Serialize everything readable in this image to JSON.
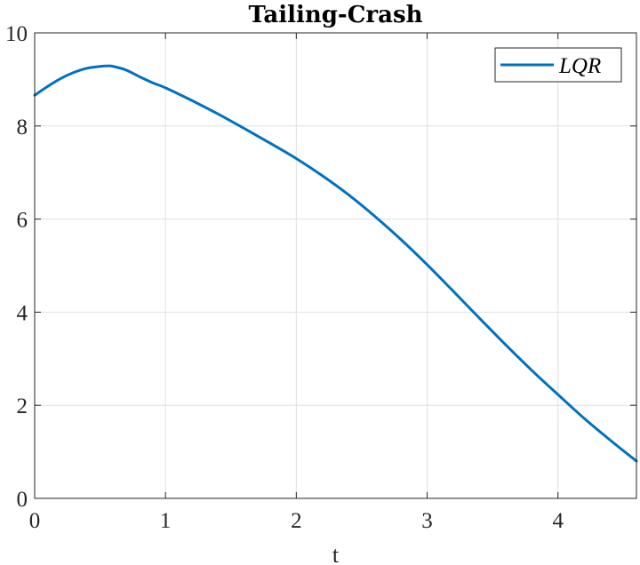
{
  "chart_data": {
    "type": "line",
    "title": "Tailing-Crash",
    "xlabel": "t",
    "ylabel": "",
    "xlim": [
      0,
      4.6
    ],
    "ylim": [
      0,
      10
    ],
    "xticks": [
      0,
      1,
      2,
      3,
      4
    ],
    "yticks": [
      0,
      2,
      4,
      6,
      8,
      10
    ],
    "grid": true,
    "legend_position": "top-right",
    "series": [
      {
        "name": "LQR",
        "color": "#0072BD",
        "x": [
          0,
          0.1,
          0.2,
          0.3,
          0.4,
          0.5,
          0.55,
          0.6,
          0.7,
          0.8,
          0.9,
          1.0,
          1.2,
          1.4,
          1.6,
          1.8,
          2.0,
          2.2,
          2.4,
          2.6,
          2.8,
          3.0,
          3.2,
          3.4,
          3.6,
          3.8,
          4.0,
          4.2,
          4.4,
          4.6
        ],
        "y": [
          8.66,
          8.85,
          9.02,
          9.15,
          9.24,
          9.28,
          9.29,
          9.28,
          9.2,
          9.06,
          8.93,
          8.82,
          8.55,
          8.26,
          7.95,
          7.63,
          7.3,
          6.93,
          6.52,
          6.06,
          5.56,
          5.02,
          4.45,
          3.87,
          3.3,
          2.75,
          2.23,
          1.72,
          1.25,
          0.8
        ]
      }
    ]
  }
}
